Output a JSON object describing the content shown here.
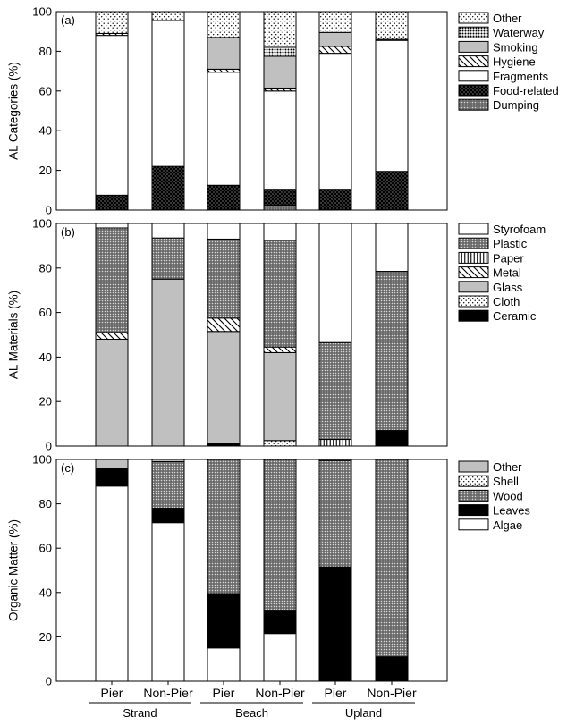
{
  "chart_data": [
    {
      "panel": "(a)",
      "type": "bar",
      "stacked": true,
      "ylabel": "AL Categories (%)",
      "ylim": [
        0,
        100
      ],
      "yticks": [
        0,
        20,
        40,
        60,
        80,
        100
      ],
      "categories": [
        "Pier",
        "Non-Pier",
        "Pier",
        "Non-Pier",
        "Pier",
        "Non-Pier"
      ],
      "groups": [
        {
          "label": "Strand",
          "span": [
            0,
            1
          ]
        },
        {
          "label": "Beach",
          "span": [
            2,
            3
          ]
        },
        {
          "label": "Upland",
          "span": [
            4,
            5
          ]
        }
      ],
      "legend_position": "right",
      "series": [
        {
          "name": "Dumping",
          "pattern": "dense-gray",
          "values": [
            0,
            0,
            0.5,
            2.5,
            0,
            0
          ]
        },
        {
          "name": "Food-related",
          "pattern": "black-dots",
          "values": [
            7.5,
            22,
            12,
            8,
            10.5,
            19.5
          ]
        },
        {
          "name": "Fragments",
          "pattern": "white",
          "values": [
            80.5,
            73.5,
            57,
            49.5,
            68.5,
            66
          ]
        },
        {
          "name": "Hygiene",
          "pattern": "diagonal",
          "values": [
            1,
            0,
            1.5,
            1.5,
            3.5,
            0
          ]
        },
        {
          "name": "Smoking",
          "pattern": "light-gray",
          "values": [
            0,
            0,
            16,
            16,
            7,
            0.5
          ]
        },
        {
          "name": "Waterway",
          "pattern": "medium-dots",
          "values": [
            0,
            0,
            0,
            4.5,
            0,
            0
          ]
        },
        {
          "name": "Other",
          "pattern": "sparse-dots",
          "values": [
            11,
            4.5,
            13,
            18,
            10.5,
            14
          ]
        }
      ]
    },
    {
      "panel": "(b)",
      "type": "bar",
      "stacked": true,
      "ylabel": "AL Materials (%)",
      "ylim": [
        0,
        100
      ],
      "yticks": [
        0,
        20,
        40,
        60,
        80,
        100
      ],
      "categories": [
        "Pier",
        "Non-Pier",
        "Pier",
        "Non-Pier",
        "Pier",
        "Non-Pier"
      ],
      "legend_position": "right",
      "series": [
        {
          "name": "Ceramic",
          "pattern": "black",
          "values": [
            0,
            0,
            1,
            0,
            0,
            7
          ]
        },
        {
          "name": "Cloth",
          "pattern": "sparse-dots",
          "values": [
            0,
            0,
            0,
            2.5,
            0,
            0
          ]
        },
        {
          "name": "Glass",
          "pattern": "light-gray",
          "values": [
            48,
            75,
            50.5,
            39.5,
            0,
            0
          ]
        },
        {
          "name": "Metal",
          "pattern": "diagonal",
          "values": [
            3,
            0,
            6,
            2.5,
            0,
            0
          ]
        },
        {
          "name": "Paper",
          "pattern": "vertical-lines",
          "values": [
            0,
            0,
            0,
            0,
            3,
            0
          ]
        },
        {
          "name": "Plastic",
          "pattern": "dense-gray",
          "values": [
            47,
            18.5,
            35.5,
            48,
            43.5,
            71.5
          ]
        },
        {
          "name": "Styrofoam",
          "pattern": "white",
          "values": [
            2,
            6.5,
            7,
            7.5,
            53.5,
            21.5
          ]
        }
      ]
    },
    {
      "panel": "(c)",
      "type": "bar",
      "stacked": true,
      "ylabel": "Organic Matter (%)",
      "ylim": [
        0,
        100
      ],
      "yticks": [
        0,
        20,
        40,
        60,
        80,
        100
      ],
      "categories": [
        "Pier",
        "Non-Pier",
        "Pier",
        "Non-Pier",
        "Pier",
        "Non-Pier"
      ],
      "legend_position": "right",
      "series": [
        {
          "name": "Algae",
          "pattern": "white",
          "values": [
            88,
            71.5,
            15,
            21.5,
            0,
            0
          ]
        },
        {
          "name": "Leaves",
          "pattern": "black",
          "values": [
            8,
            6.5,
            24.5,
            10.5,
            51.5,
            11
          ]
        },
        {
          "name": "Wood",
          "pattern": "dense-gray",
          "values": [
            0,
            21,
            60.5,
            68,
            48,
            89
          ]
        },
        {
          "name": "Shell",
          "pattern": "sparse-dots",
          "values": [
            0,
            0,
            0,
            0,
            0,
            0
          ]
        },
        {
          "name": "Other",
          "pattern": "light-gray",
          "values": [
            4,
            1,
            0,
            0,
            0.5,
            0
          ]
        }
      ]
    }
  ]
}
